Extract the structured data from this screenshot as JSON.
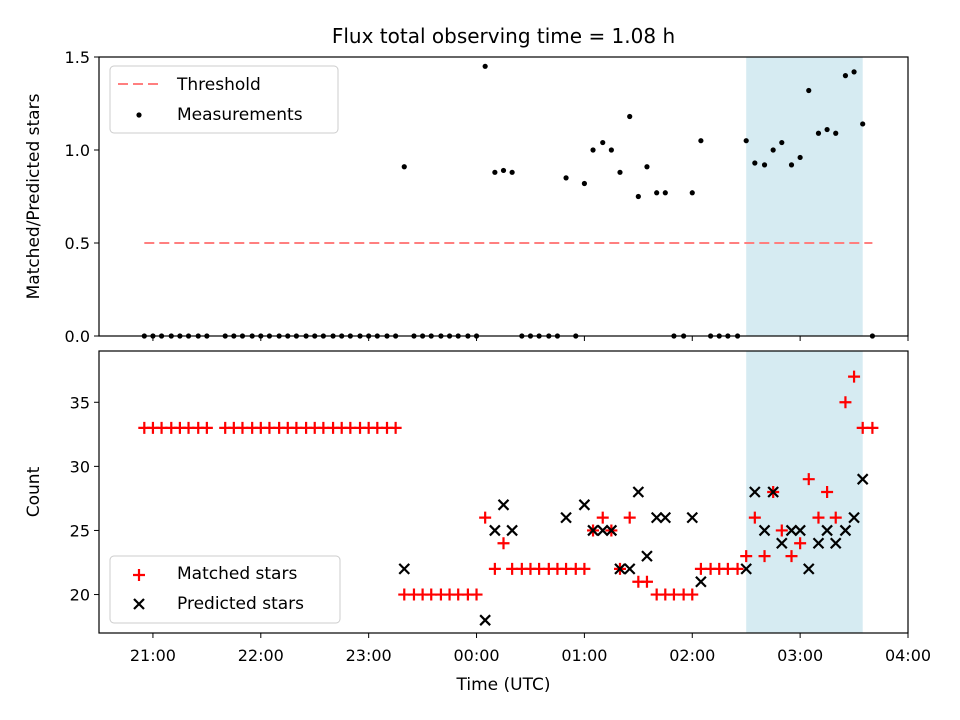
{
  "figure": {
    "title": "Flux total observing time = 1.08 h",
    "xlabel": "Time (UTC)",
    "x_ticks": [
      "21:00",
      "22:00",
      "23:00",
      "00:00",
      "01:00",
      "02:00",
      "03:00",
      "04:00"
    ]
  },
  "chart_data": [
    {
      "type": "scatter",
      "ylabel": "Matched/Predicted stars",
      "xlim": [
        -3.5,
        4.0
      ],
      "ylim": [
        0.0,
        1.5
      ],
      "y_ticks": [
        0.0,
        0.5,
        1.0,
        1.5
      ],
      "grid": false,
      "legend_position": "top-left",
      "shaded_interval": {
        "x": [
          2.5,
          3.58
        ],
        "color": "#add8e6"
      },
      "threshold": {
        "name": "Threshold",
        "y": 0.5,
        "x": [
          -3.08,
          3.67
        ],
        "color": "#ff7f7f",
        "style": "dashed"
      },
      "series": [
        {
          "name": "Measurements",
          "color": "#000000",
          "marker": "dot",
          "x": [
            -3.08,
            -3.0,
            -2.92,
            -2.83,
            -2.75,
            -2.67,
            -2.58,
            -2.5,
            -2.33,
            -2.25,
            -2.17,
            -2.08,
            -2.0,
            -1.92,
            -1.83,
            -1.75,
            -1.67,
            -1.58,
            -1.5,
            -1.42,
            -1.33,
            -1.25,
            -1.17,
            -1.08,
            -1.0,
            -0.92,
            -0.83,
            -0.75,
            -0.67,
            -0.58,
            -0.5,
            -0.42,
            -0.33,
            -0.25,
            -0.17,
            -0.08,
            0.0,
            0.08,
            0.17,
            0.25,
            0.33,
            0.42,
            0.5,
            0.58,
            0.67,
            0.75,
            0.83,
            0.92,
            1.0,
            1.08,
            1.17,
            1.25,
            1.33,
            1.42,
            1.5,
            1.58,
            1.67,
            1.75,
            1.83,
            1.92,
            2.0,
            2.08,
            2.17,
            2.25,
            2.33,
            2.42,
            2.5,
            2.58,
            2.67,
            2.75,
            2.83,
            2.92,
            3.0,
            3.08,
            3.17,
            3.25,
            3.33,
            3.42,
            3.5,
            3.58,
            3.67
          ],
          "y": [
            0,
            0,
            0,
            0,
            0,
            0,
            0,
            0,
            0,
            0,
            0,
            0,
            0,
            0,
            0,
            0,
            0,
            0,
            0,
            0,
            0,
            0,
            0,
            0,
            0,
            0,
            0,
            0,
            0.91,
            0,
            0,
            0,
            0,
            0,
            0,
            0,
            0,
            1.45,
            0.88,
            0.89,
            0.88,
            0,
            0,
            0,
            0,
            0,
            0.85,
            0,
            0.82,
            1.0,
            1.04,
            1.0,
            0.88,
            1.18,
            0.75,
            0.91,
            0.77,
            0.77,
            0,
            0,
            0.77,
            1.05,
            0,
            0,
            0,
            0,
            1.05,
            0.93,
            0.92,
            1.0,
            1.04,
            0.92,
            0.96,
            1.32,
            1.09,
            1.11,
            1.09,
            1.4,
            1.42,
            1.14,
            0
          ]
        }
      ]
    },
    {
      "type": "scatter",
      "ylabel": "Count",
      "xlim": [
        -3.5,
        4.0
      ],
      "ylim": [
        17,
        39
      ],
      "y_ticks": [
        20,
        25,
        30,
        35
      ],
      "grid": false,
      "legend_position": "bottom-left",
      "shaded_interval": {
        "x": [
          2.5,
          3.58
        ],
        "color": "#add8e6"
      },
      "series": [
        {
          "name": "Matched stars",
          "color": "#ff0000",
          "marker": "plus",
          "x": [
            -3.08,
            -3.0,
            -2.92,
            -2.83,
            -2.75,
            -2.67,
            -2.58,
            -2.5,
            -2.33,
            -2.25,
            -2.17,
            -2.08,
            -2.0,
            -1.92,
            -1.83,
            -1.75,
            -1.67,
            -1.58,
            -1.5,
            -1.42,
            -1.33,
            -1.25,
            -1.17,
            -1.08,
            -1.0,
            -0.92,
            -0.83,
            -0.75,
            -0.67,
            -0.58,
            -0.5,
            -0.42,
            -0.33,
            -0.25,
            -0.17,
            -0.08,
            0.0,
            0.08,
            0.17,
            0.25,
            0.33,
            0.42,
            0.5,
            0.58,
            0.67,
            0.75,
            0.83,
            0.92,
            1.0,
            1.08,
            1.17,
            1.25,
            1.33,
            1.42,
            1.5,
            1.58,
            1.67,
            1.75,
            1.83,
            1.92,
            2.0,
            2.08,
            2.17,
            2.25,
            2.33,
            2.42,
            2.5,
            2.58,
            2.67,
            2.75,
            2.83,
            2.92,
            3.0,
            3.08,
            3.17,
            3.25,
            3.33,
            3.42,
            3.5,
            3.58,
            3.67
          ],
          "y": [
            33,
            33,
            33,
            33,
            33,
            33,
            33,
            33,
            33,
            33,
            33,
            33,
            33,
            33,
            33,
            33,
            33,
            33,
            33,
            33,
            33,
            33,
            33,
            33,
            33,
            33,
            33,
            33,
            20,
            20,
            20,
            20,
            20,
            20,
            20,
            20,
            20,
            26,
            22,
            24,
            22,
            22,
            22,
            22,
            22,
            22,
            22,
            22,
            22,
            25,
            26,
            25,
            22,
            26,
            21,
            21,
            20,
            20,
            20,
            20,
            20,
            22,
            22,
            22,
            22,
            22,
            23,
            26,
            23,
            28,
            25,
            23,
            24,
            29,
            26,
            28,
            26,
            35,
            37,
            33,
            33
          ]
        },
        {
          "name": "Predicted stars",
          "color": "#000000",
          "marker": "x",
          "x": [
            -0.67,
            0.08,
            0.17,
            0.25,
            0.33,
            0.83,
            1.0,
            1.08,
            1.17,
            1.25,
            1.33,
            1.42,
            1.5,
            1.58,
            1.67,
            1.75,
            2.0,
            2.08,
            2.5,
            2.58,
            2.67,
            2.75,
            2.83,
            2.92,
            3.0,
            3.08,
            3.17,
            3.25,
            3.33,
            3.42,
            3.5,
            3.58
          ],
          "y": [
            22,
            18,
            25,
            27,
            25,
            26,
            27,
            25,
            25,
            25,
            22,
            22,
            28,
            23,
            26,
            26,
            26,
            21,
            22,
            28,
            25,
            28,
            24,
            25,
            25,
            22,
            24,
            25,
            24,
            25,
            26,
            29
          ]
        }
      ]
    }
  ]
}
